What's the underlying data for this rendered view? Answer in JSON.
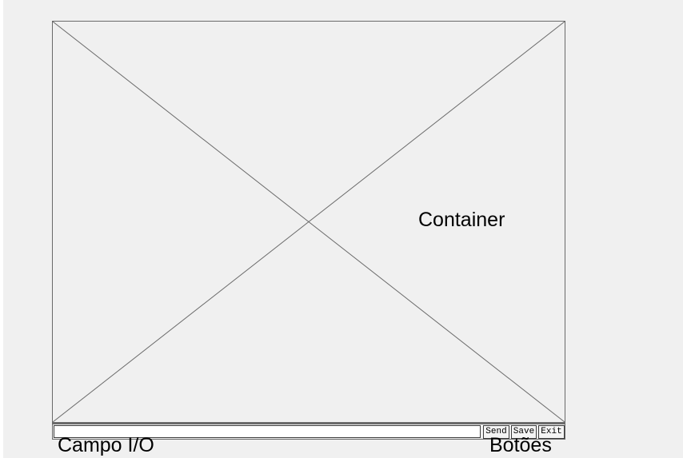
{
  "container": {
    "label": "Container"
  },
  "io": {
    "value": "",
    "caption": "Campo I/O"
  },
  "buttons": {
    "send": "Send",
    "save": "Save",
    "exit": "Exit",
    "caption": "Botões"
  },
  "colors": {
    "background": "#f0f0f0",
    "frame": "#6a6a6a",
    "field": "#ffffff"
  },
  "icons": {
    "placeholder": "crossed-box-placeholder-icon"
  }
}
